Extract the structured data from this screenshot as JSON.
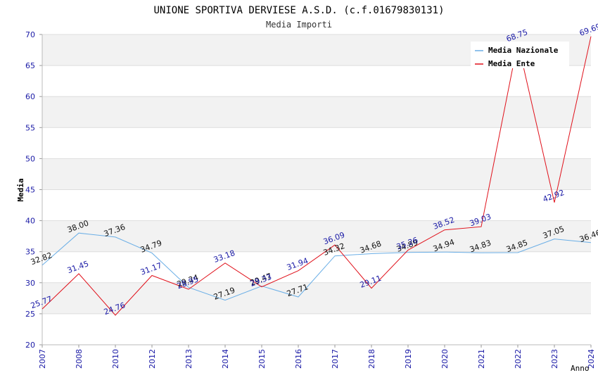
{
  "chart_data": {
    "type": "line",
    "title": "UNIONE SPORTIVA DERVIESE A.S.D. (c.f.01679830131)",
    "subtitle": "Media Importi",
    "xlabel": "Anno",
    "ylabel": "Media",
    "ylim": [
      20,
      70
    ],
    "yticks": [
      "20",
      "25",
      "30",
      "35",
      "40",
      "45",
      "50",
      "55",
      "60",
      "65",
      "70"
    ],
    "categories": [
      "2007",
      "2008",
      "2010",
      "2012",
      "2013",
      "2014",
      "2015",
      "2016",
      "2017",
      "2018",
      "2019",
      "2020",
      "2021",
      "2022",
      "2023",
      "2024"
    ],
    "series": [
      {
        "name": "Media Nazionale",
        "color": "#6aaee6",
        "values": [
          32.82,
          38.0,
          37.36,
          34.79,
          29.24,
          27.19,
          29.47,
          27.71,
          34.32,
          34.68,
          34.89,
          34.94,
          34.83,
          34.85,
          37.05,
          36.46
        ],
        "labels": [
          "32.82",
          "38.00",
          "37.36",
          "34.79",
          "29.24",
          "27.19",
          "29.47",
          "27.71",
          "34.32",
          "34.68",
          "34.89",
          "34.94",
          "34.83",
          "34.85",
          "37.05",
          "36.46"
        ]
      },
      {
        "name": "Media Ente",
        "color": "#e0101a",
        "values": [
          25.77,
          31.45,
          24.76,
          31.17,
          28.95,
          33.18,
          29.33,
          31.94,
          36.09,
          29.11,
          35.26,
          38.52,
          39.03,
          68.75,
          42.92,
          69.69
        ],
        "labels": [
          "25.77",
          "31.45",
          "24.76",
          "31.17",
          "28.95",
          "33.18",
          "29.33",
          "31.94",
          "36.09",
          "29.11",
          "35.26",
          "38.52",
          "39.03",
          "68.75",
          "42.92",
          "69.69"
        ]
      }
    ],
    "legend_position": "top-right",
    "grid": true
  }
}
